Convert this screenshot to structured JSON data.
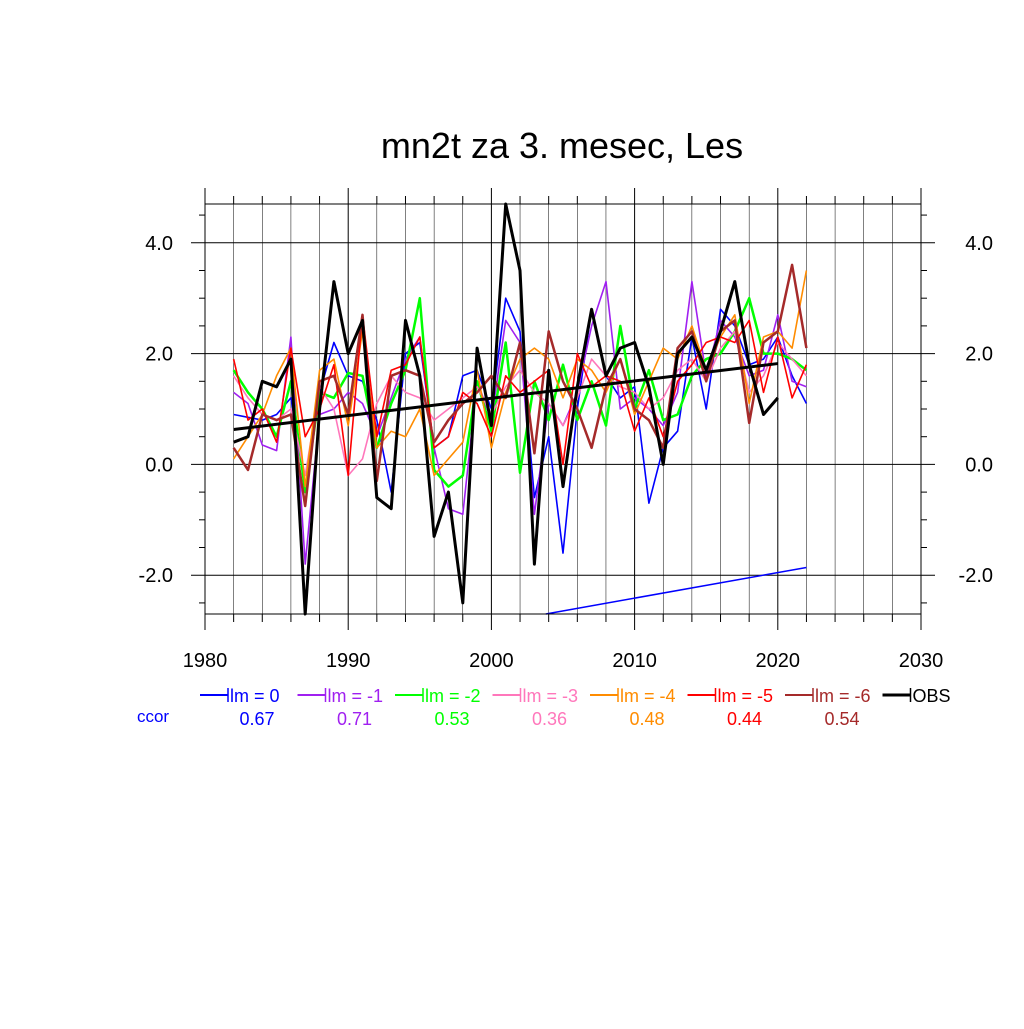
{
  "chart_data": {
    "type": "line",
    "title": "mn2t za 3. mesec, Les",
    "xlim": [
      1980,
      2030
    ],
    "ylim": [
      -2.7,
      4.7
    ],
    "x_ticks": [
      1980,
      1990,
      2000,
      2010,
      2020,
      2030
    ],
    "x_tick_labels": [
      "1980",
      "1990",
      "2000",
      "2010",
      "2020",
      "2030"
    ],
    "y_ticks": [
      -2.0,
      0.0,
      2.0,
      4.0
    ],
    "y_tick_labels": [
      "-2.0",
      "0.0",
      "2.0",
      "4.0"
    ],
    "grid": true,
    "legend_position": "bottom",
    "ccor_label": "ccor",
    "years": [
      1982,
      1983,
      1984,
      1985,
      1986,
      1987,
      1988,
      1989,
      1990,
      1991,
      1992,
      1993,
      1994,
      1995,
      1996,
      1997,
      1998,
      1999,
      2000,
      2001,
      2002,
      2003,
      2004,
      2005,
      2006,
      2007,
      2008,
      2009,
      2010,
      2011,
      2012,
      2013,
      2014,
      2015,
      2016,
      2017,
      2018,
      2019,
      2020,
      2021,
      2022
    ],
    "series": [
      {
        "name": "lm = 0",
        "color": "#0000ff",
        "ccor": "0.67",
        "values": [
          0.9,
          0.85,
          0.8,
          0.9,
          1.2,
          -0.4,
          1.3,
          2.2,
          1.6,
          1.5,
          0.8,
          -0.5,
          2.0,
          2.2,
          0.3,
          0.5,
          1.6,
          1.7,
          1.0,
          3.0,
          2.4,
          -0.6,
          0.5,
          -1.6,
          1.0,
          2.8,
          1.6,
          1.2,
          1.4,
          -0.7,
          0.3,
          0.6,
          2.3,
          1.0,
          2.8,
          2.5,
          1.8,
          1.9,
          2.3,
          1.6,
          1.1
        ]
      },
      {
        "name": "lm = -1",
        "color": "#a020f0",
        "ccor": "0.71",
        "values": [
          1.3,
          1.1,
          0.35,
          0.25,
          2.3,
          -1.8,
          0.9,
          1.0,
          1.3,
          1.1,
          0.5,
          1.2,
          1.9,
          2.3,
          0.3,
          -0.8,
          -0.9,
          1.5,
          0.8,
          2.6,
          2.2,
          -0.9,
          1.1,
          0.7,
          1.3,
          2.5,
          3.3,
          1.0,
          1.2,
          1.0,
          0.7,
          1.3,
          3.3,
          1.6,
          2.6,
          2.3,
          1.6,
          1.7,
          2.7,
          1.5,
          1.4
        ]
      },
      {
        "name": "lm = -2",
        "color": "#00ff00",
        "ccor": "0.53",
        "values": [
          1.7,
          1.3,
          1.0,
          0.5,
          1.5,
          -0.5,
          1.3,
          1.2,
          1.65,
          1.6,
          0.3,
          1.1,
          1.7,
          3.0,
          -0.1,
          -0.4,
          -0.2,
          1.5,
          0.6,
          2.2,
          -0.15,
          1.5,
          0.8,
          1.8,
          0.8,
          1.5,
          0.7,
          2.5,
          1.0,
          1.7,
          0.8,
          0.9,
          1.6,
          1.9,
          2.0,
          2.4,
          3.0,
          2.0,
          2.0,
          1.9,
          1.7
        ]
      },
      {
        "name": "lm = -3",
        "color": "#ff77bb",
        "ccor": "0.36",
        "values": [
          1.6,
          1.2,
          0.9,
          0.8,
          1.0,
          -0.2,
          1.4,
          1.0,
          -0.2,
          0.1,
          1.1,
          1.6,
          1.3,
          1.2,
          0.8,
          1.0,
          1.2,
          1.4,
          0.9,
          1.4,
          1.7,
          1.3,
          1.1,
          0.7,
          1.2,
          1.9,
          1.6,
          1.4,
          1.3,
          1.0,
          1.2,
          1.7,
          1.9,
          1.5,
          2.1,
          2.4,
          1.3,
          1.6,
          2.2,
          1.9,
          1.6
        ]
      },
      {
        "name": "lm = -4",
        "color": "#ff8c00",
        "ccor": "0.48",
        "values": [
          0.1,
          0.5,
          0.9,
          1.6,
          2.1,
          -0.4,
          1.7,
          1.9,
          0.7,
          2.4,
          0.3,
          0.6,
          0.5,
          1.0,
          -0.2,
          0.1,
          0.4,
          1.7,
          0.3,
          1.3,
          1.9,
          2.1,
          1.9,
          1.2,
          1.9,
          1.7,
          1.3,
          1.9,
          0.9,
          1.5,
          2.1,
          1.9,
          2.5,
          1.7,
          2.3,
          2.7,
          1.1,
          2.3,
          2.4,
          2.1,
          3.5
        ]
      },
      {
        "name": "lm = -5",
        "color": "#ff0000",
        "ccor": "0.44",
        "values": [
          1.9,
          0.8,
          1.0,
          0.4,
          2.1,
          0.5,
          1.0,
          1.8,
          -0.2,
          2.7,
          0.5,
          1.7,
          1.8,
          2.3,
          0.3,
          0.5,
          1.3,
          1.1,
          0.5,
          1.6,
          1.3,
          1.5,
          1.7,
          0.0,
          2.0,
          1.4,
          1.6,
          1.5,
          0.6,
          1.2,
          0.5,
          1.5,
          1.8,
          2.2,
          2.3,
          2.2,
          2.6,
          1.3,
          2.3,
          1.2,
          1.8
        ]
      },
      {
        "name": "lm = -6",
        "color": "#a52a2a",
        "ccor": "0.54",
        "values": [
          0.3,
          -0.1,
          0.9,
          0.8,
          0.9,
          -0.75,
          1.5,
          1.6,
          0.9,
          2.7,
          -0.3,
          1.6,
          1.7,
          1.6,
          0.4,
          0.8,
          1.1,
          1.3,
          1.6,
          1.2,
          2.2,
          0.2,
          2.4,
          1.5,
          1.0,
          0.3,
          1.4,
          1.9,
          1.0,
          0.8,
          0.3,
          2.1,
          2.4,
          1.5,
          2.4,
          2.6,
          0.75,
          2.2,
          2.4,
          3.6,
          2.1
        ]
      },
      {
        "name": "OBS",
        "color": "#000000",
        "ccor": "",
        "values": [
          0.4,
          0.5,
          1.5,
          1.4,
          1.9,
          -2.7,
          1.0,
          3.3,
          2.0,
          2.6,
          -0.6,
          -0.8,
          2.6,
          1.6,
          -1.3,
          -0.5,
          -2.5,
          2.1,
          0.7,
          4.7,
          3.5,
          -1.8,
          1.7,
          -0.4,
          1.4,
          2.8,
          1.6,
          2.1,
          2.2,
          1.4,
          0.0,
          2.0,
          2.3,
          1.7,
          2.4,
          3.3,
          1.8,
          0.9,
          1.2,
          null,
          null
        ]
      }
    ],
    "trend_obs": {
      "x": [
        1982,
        2020
      ],
      "y": [
        0.63,
        1.82
      ],
      "color": "#000000"
    },
    "trend_blue": {
      "x": [
        2003.8,
        2022
      ],
      "y": [
        -2.7,
        -1.86
      ],
      "color": "#0000ff"
    }
  }
}
